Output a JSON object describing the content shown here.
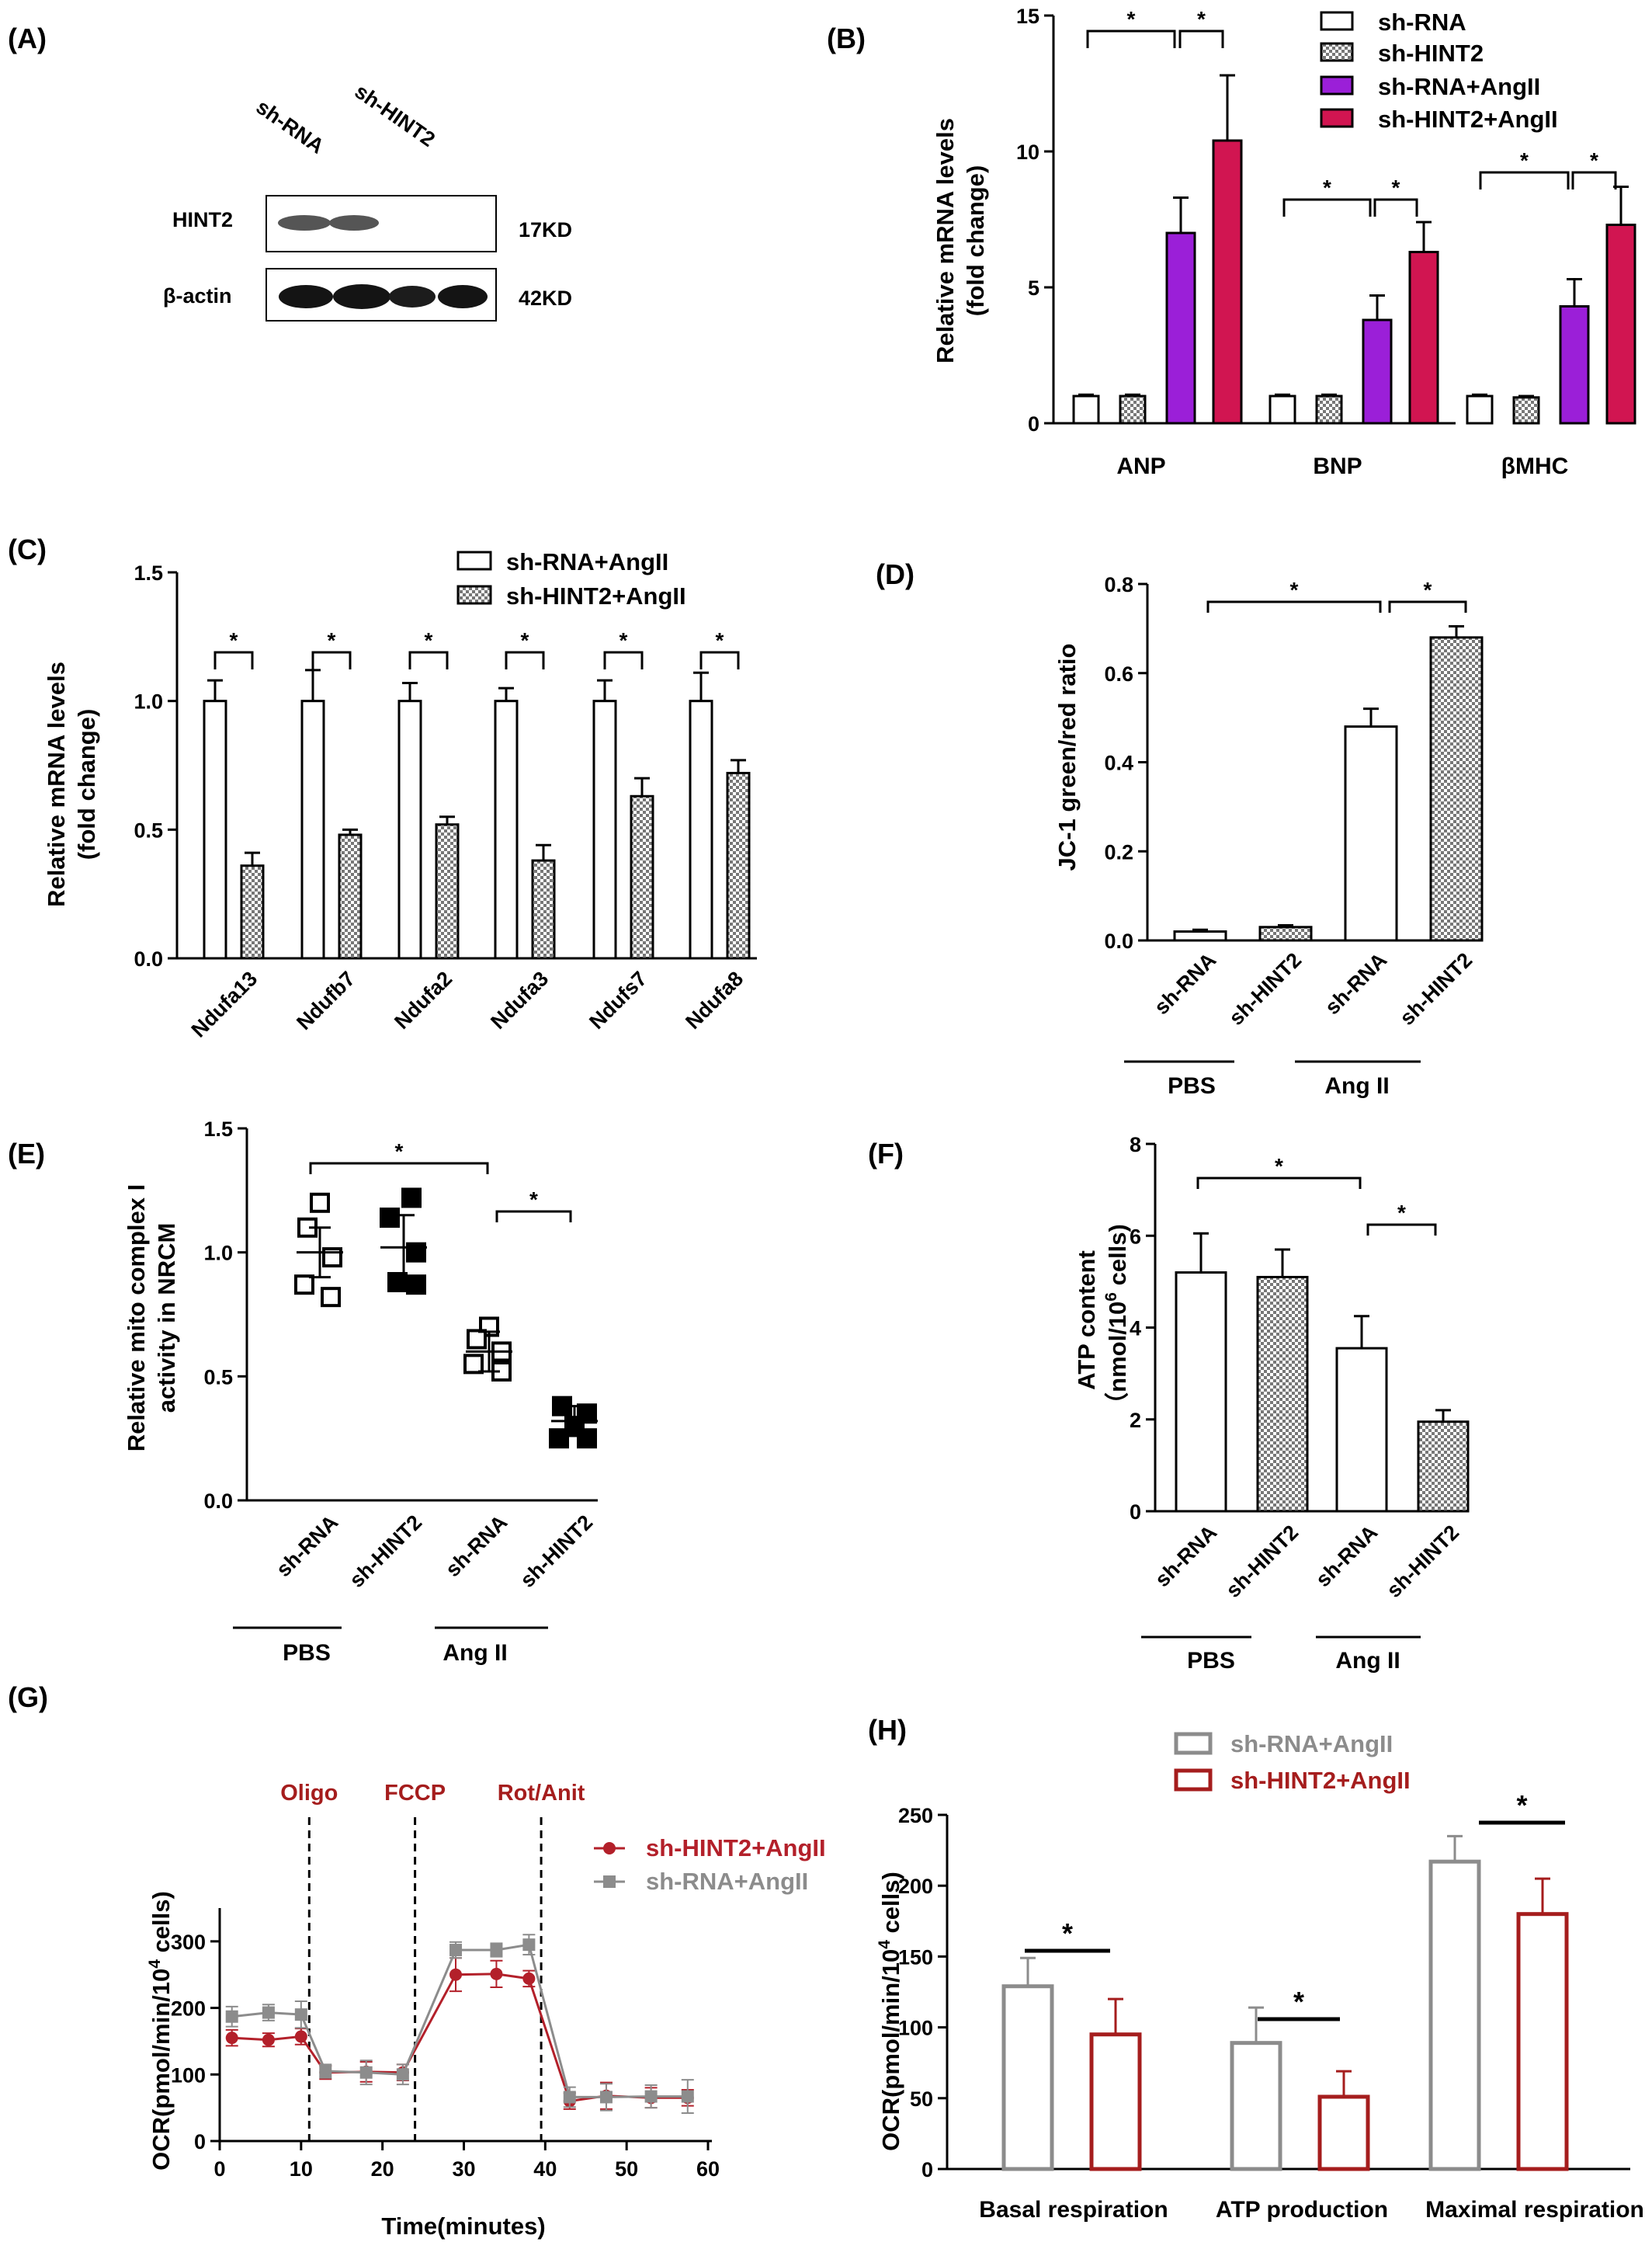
{
  "colors": {
    "purple": "#9b1fd8",
    "crimson": "#d11551",
    "dark_red": "#a51d1d",
    "gray": "#8c8c8c",
    "red_line": "#b3202a",
    "check_fill": "#8a8a8a"
  },
  "chart_data": [
    {
      "panel": "(A)",
      "type": "western-blot",
      "lanes": [
        "sh-RNA",
        "sh-HINT2"
      ],
      "bands": [
        {
          "protein": "HINT2",
          "size": "17KD"
        },
        {
          "protein": "β-actin",
          "size": "42KD"
        }
      ]
    },
    {
      "panel": "(B)",
      "type": "bar",
      "ylabel": "Relative mRNA levels (fold change)",
      "ylabel_lines": [
        "Relative mRNA levels",
        "(fold change)"
      ],
      "ylim": [
        0,
        15
      ],
      "yticks": [
        "0",
        "5",
        "10",
        "15"
      ],
      "categories": [
        "ANP",
        "BNP",
        "βMHC"
      ],
      "series": [
        {
          "name": "sh-RNA",
          "values": [
            1.0,
            1.0,
            1.0
          ],
          "errors": [
            0.05,
            0.05,
            0.05
          ]
        },
        {
          "name": "sh-HINT2",
          "values": [
            1.0,
            1.0,
            0.95
          ],
          "errors": [
            0.05,
            0.05,
            0.05
          ]
        },
        {
          "name": "sh-RNA+AngII",
          "values": [
            7.0,
            3.8,
            4.3
          ],
          "errors": [
            1.3,
            0.9,
            1.0
          ]
        },
        {
          "name": "sh-HINT2+AngII",
          "values": [
            10.4,
            6.3,
            7.3
          ],
          "errors": [
            2.4,
            1.1,
            1.4
          ]
        }
      ],
      "significance": "*"
    },
    {
      "panel": "(C)",
      "type": "bar",
      "ylabel": "Relative mRNA levels (fold change)",
      "ylabel_lines": [
        "Relative mRNA levels",
        "(fold change)"
      ],
      "ylim": [
        0,
        1.5
      ],
      "yticks": [
        "0.0",
        "0.5",
        "1.0",
        "1.5"
      ],
      "categories": [
        "Ndufa13",
        "Ndufb7",
        "Ndufa2",
        "Ndufa3",
        "Ndufs7",
        "Ndufa8"
      ],
      "series": [
        {
          "name": "sh-RNA+AngII",
          "values": [
            1.0,
            1.0,
            1.0,
            1.0,
            1.0,
            1.0
          ],
          "errors": [
            0.08,
            0.12,
            0.07,
            0.05,
            0.08,
            0.11
          ]
        },
        {
          "name": "sh-HINT2+AngII",
          "values": [
            0.36,
            0.48,
            0.52,
            0.38,
            0.63,
            0.72
          ],
          "errors": [
            0.05,
            0.02,
            0.03,
            0.06,
            0.07,
            0.05
          ]
        }
      ],
      "significance": "*"
    },
    {
      "panel": "(D)",
      "type": "bar",
      "ylabel": "JC-1 green/red ratio",
      "ylim": [
        0,
        0.8
      ],
      "yticks": [
        "0.0",
        "0.2",
        "0.4",
        "0.6",
        "0.8"
      ],
      "categories": [
        "sh-RNA",
        "sh-HINT2",
        "sh-RNA",
        "sh-HINT2"
      ],
      "groups": [
        "PBS",
        "Ang II"
      ],
      "values": [
        0.02,
        0.03,
        0.48,
        0.68
      ],
      "errors": [
        0.004,
        0.004,
        0.04,
        0.025
      ],
      "significance": "*"
    },
    {
      "panel": "(E)",
      "type": "scatter",
      "ylabel": "Relative mito complex I activity in NRCM",
      "ylabel_lines": [
        "Relative mito complex I",
        "activity in NRCM"
      ],
      "ylim": [
        0,
        1.5
      ],
      "yticks": [
        "0.0",
        "0.5",
        "1.0",
        "1.5"
      ],
      "categories": [
        "sh-RNA",
        "sh-HINT2",
        "sh-RNA",
        "sh-HINT2"
      ],
      "groups": [
        "PBS",
        "Ang II"
      ],
      "points": [
        [
          1.2,
          1.1,
          0.98,
          0.87,
          0.82
        ],
        [
          1.22,
          1.14,
          1.0,
          0.88,
          0.87
        ],
        [
          0.7,
          0.65,
          0.6,
          0.55,
          0.52
        ],
        [
          0.38,
          0.35,
          0.3,
          0.25,
          0.25
        ]
      ],
      "means": [
        1.0,
        1.02,
        0.6,
        0.32
      ],
      "sd": [
        0.1,
        0.13,
        0.08,
        0.06
      ],
      "significance": "*"
    },
    {
      "panel": "(F)",
      "type": "bar",
      "ylabel": "ATP content (nmol/10⁶ cells)",
      "ylabel_line1": "ATP content",
      "ylabel_line2": "（nmol/10",
      "ylabel_sup": "6",
      "ylabel_tail": " cells)",
      "ylim": [
        0,
        8
      ],
      "yticks": [
        "0",
        "2",
        "4",
        "6",
        "8"
      ],
      "categories": [
        "sh-RNA",
        "sh-HINT2",
        "sh-RNA",
        "sh-HINT2"
      ],
      "groups": [
        "PBS",
        "Ang II"
      ],
      "values": [
        5.2,
        5.1,
        3.55,
        1.95
      ],
      "errors": [
        0.85,
        0.6,
        0.7,
        0.25
      ],
      "significance": "*"
    },
    {
      "panel": "(G)",
      "type": "line",
      "xlabel": "Time(minutes)",
      "ylabel_main": "OCR(pmol/min/10",
      "ylabel_sup": "4",
      "ylabel_tail": " cells)",
      "xlim": [
        0,
        60
      ],
      "ylim": [
        0,
        350
      ],
      "xticks": [
        "0",
        "10",
        "20",
        "30",
        "40",
        "50",
        "60"
      ],
      "yticks": [
        "0",
        "100",
        "200",
        "300"
      ],
      "x": [
        1.5,
        6,
        10,
        13,
        18,
        22.5,
        29,
        34,
        38,
        43,
        47.5,
        53,
        57.5
      ],
      "series": [
        {
          "name": "sh-HINT2+AngII",
          "values": [
            155,
            152,
            157,
            103,
            104,
            103,
            250,
            251,
            244,
            60,
            68,
            65,
            65
          ],
          "errors": [
            12,
            10,
            12,
            10,
            15,
            12,
            25,
            20,
            12,
            12,
            20,
            15,
            12
          ]
        },
        {
          "name": "sh-RNA+AngII",
          "values": [
            187,
            193,
            190,
            105,
            103,
            100,
            287,
            287,
            295,
            66,
            66,
            67,
            67
          ],
          "errors": [
            15,
            12,
            20,
            10,
            18,
            15,
            12,
            10,
            15,
            15,
            20,
            17,
            25
          ]
        }
      ],
      "annotations": [
        {
          "label": "Oligo",
          "x": 11
        },
        {
          "label": "FCCP",
          "x": 24
        },
        {
          "label": "Rot/Anit",
          "x": 39.5
        }
      ]
    },
    {
      "panel": "(H)",
      "type": "bar",
      "ylabel_main": "OCR(pmol/min/10",
      "ylabel_sup": "4",
      "ylabel_tail": " cells)",
      "ylim": [
        0,
        250
      ],
      "yticks": [
        "0",
        "50",
        "100",
        "150",
        "200",
        "250"
      ],
      "categories": [
        "Basal respiration",
        "ATP production",
        "Maximal respiration"
      ],
      "series": [
        {
          "name": "sh-RNA+AngII",
          "values": [
            129,
            89,
            217
          ],
          "errors": [
            20,
            25,
            18
          ]
        },
        {
          "name": "sh-HINT2+AngII",
          "values": [
            95,
            51,
            180
          ],
          "errors": [
            25,
            18,
            25
          ]
        }
      ],
      "significance": "*"
    }
  ]
}
